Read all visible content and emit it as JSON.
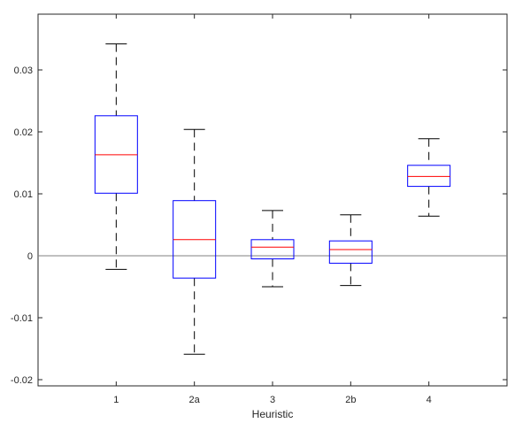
{
  "chart_data": {
    "type": "box",
    "xlabel": "Heuristic",
    "ylabel": "",
    "title": "",
    "ylim": [
      -0.021,
      0.039
    ],
    "yticks": [
      -0.02,
      -0.01,
      0,
      0.01,
      0.02,
      0.03
    ],
    "ytick_labels": [
      "-0.02",
      "-0.01",
      "0",
      "0.01",
      "0.02",
      "0.03"
    ],
    "categories": [
      "1",
      "2a",
      "3",
      "2b",
      "4"
    ],
    "boxes": [
      {
        "label": "1",
        "whisker_low": -0.0022,
        "q1": 0.0101,
        "median": 0.0163,
        "q3": 0.0226,
        "whisker_high": 0.0342
      },
      {
        "label": "2a",
        "whisker_low": -0.0159,
        "q1": -0.0036,
        "median": 0.0026,
        "q3": 0.0089,
        "whisker_high": 0.0204
      },
      {
        "label": "3",
        "whisker_low": -0.005,
        "q1": -0.0005,
        "median": 0.0014,
        "q3": 0.0026,
        "whisker_high": 0.0073
      },
      {
        "label": "2b",
        "whisker_low": -0.0048,
        "q1": -0.0012,
        "median": 0.001,
        "q3": 0.0024,
        "whisker_high": 0.0066
      },
      {
        "label": "4",
        "whisker_low": 0.0064,
        "q1": 0.0112,
        "median": 0.0128,
        "q3": 0.0146,
        "whisker_high": 0.0189
      }
    ],
    "reference_line": 0,
    "colors": {
      "box": "#0000ff",
      "median": "#ff0000",
      "whisker": "#000000",
      "reference": "#808080",
      "axis": "#262626"
    }
  }
}
